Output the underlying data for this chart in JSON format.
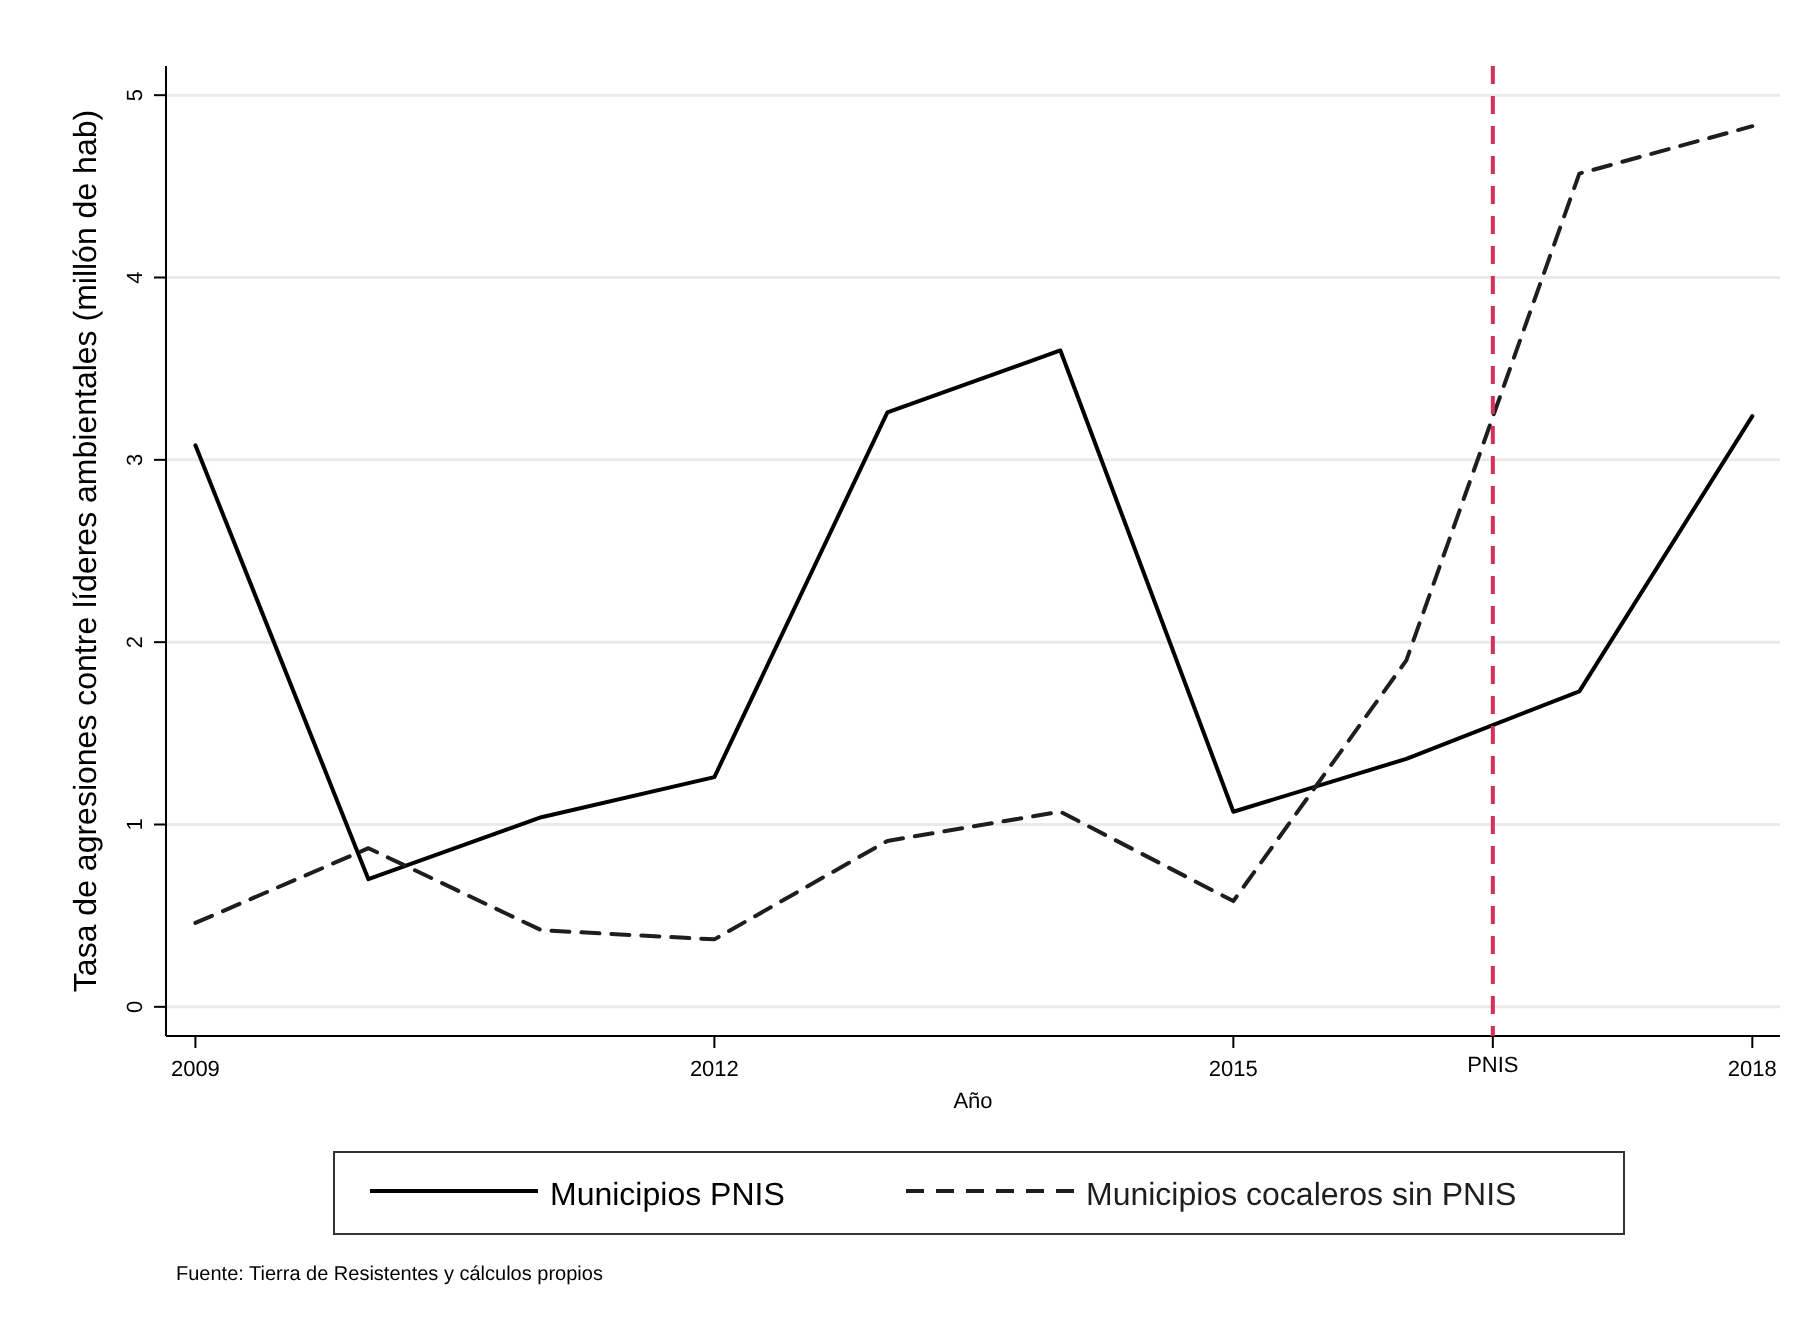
{
  "chart_data": {
    "type": "line",
    "xlabel": "Año",
    "ylabel": "Tasa de agresiones contre líderes ambientales (millón de hab)",
    "x": [
      2009,
      2010,
      2011,
      2012,
      2013,
      2014,
      2015,
      2016,
      2017,
      2018
    ],
    "series": [
      {
        "name": "Municipios PNIS",
        "color": "#000000",
        "line_style": "solid",
        "values": [
          3.08,
          0.7,
          1.04,
          1.26,
          3.26,
          3.6,
          1.07,
          1.36,
          1.73,
          3.24
        ]
      },
      {
        "name": "Municipios cocaleros sin PNIS",
        "color": "#1e1e1e",
        "line_style": "dashed",
        "values": [
          0.46,
          0.87,
          0.42,
          0.37,
          0.91,
          1.07,
          0.58,
          1.9,
          4.57,
          4.83
        ]
      }
    ],
    "xlim": [
      2008.83,
      2018.16
    ],
    "xticks": [
      2009,
      2012,
      2015,
      2018
    ],
    "ylim": [
      -0.16,
      5.16
    ],
    "yticks": [
      0,
      1,
      2,
      3,
      4,
      5
    ],
    "grid": "y",
    "legend": "bottom",
    "marker": "none",
    "ref_lines": [
      {
        "axis": "x",
        "value": 2016.5,
        "label": "PNIS",
        "color": "#d6305a",
        "line_style": "dashed"
      }
    ],
    "annotations": [
      "Fuente: Tierra de Resistentes y cálculos propios"
    ]
  }
}
